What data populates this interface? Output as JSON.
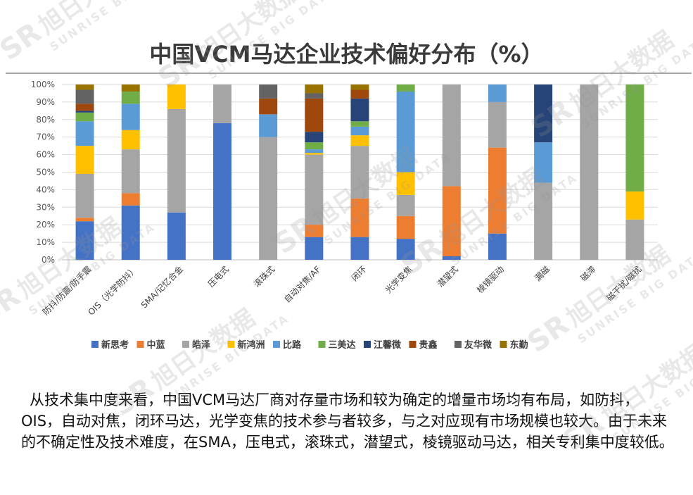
{
  "page": {
    "title": "中国VCM马达企业技术偏好分布（%）",
    "paragraph": "从技术集中度来看，中国VCM马达厂商对存量市场和较为确定的增量市场均有布局，如防抖，OIS，自动对焦，闭环马达，光学变焦的技术参与者较多，与之对应现有市场规模也较大。由于未来的不确定性及技术难度，在SMA，压电式，滚珠式，潜望式，棱镜驱动马达，相关专利集中度较低。",
    "watermark": {
      "logo": "SR",
      "cn": "旭日大数据",
      "en": "SUNRISE BIG DATA"
    }
  },
  "chart_data": {
    "type": "bar",
    "stacked": true,
    "title": "中国VCM马达企业技术偏好分布（%）",
    "xlabel": "",
    "ylabel": "",
    "ylim": [
      0,
      100
    ],
    "yticks": [
      0,
      10,
      20,
      30,
      40,
      50,
      60,
      70,
      80,
      90,
      100
    ],
    "ytick_suffix": "%",
    "grid": true,
    "legend_position": "bottom",
    "categories": [
      "防抖/防震/防手震",
      "OIS（光学防抖）",
      "SMA/记忆合金",
      "压电式",
      "滚珠式",
      "自动对焦/AF",
      "闭环",
      "光学变焦",
      "潜望式",
      "棱镜驱动",
      "漏磁",
      "磁滞",
      "磁干扰/磁扰"
    ],
    "series": [
      {
        "name": "新思考",
        "color": "#4472c4",
        "values": [
          22,
          31,
          27,
          78,
          0,
          13,
          13,
          12,
          2,
          15,
          0,
          0,
          0
        ]
      },
      {
        "name": "中蓝",
        "color": "#ed7d31",
        "values": [
          2,
          7,
          0,
          0,
          0,
          7,
          22,
          13,
          40,
          49,
          0,
          0,
          0
        ]
      },
      {
        "name": "皓泽",
        "color": "#a5a5a5",
        "values": [
          25,
          25,
          59,
          22,
          70,
          40,
          30,
          12,
          58,
          26,
          44,
          100,
          23
        ]
      },
      {
        "name": "新鸿洲",
        "color": "#ffc000",
        "values": [
          16,
          11,
          14,
          0,
          0,
          1,
          6,
          13,
          0,
          0,
          0,
          0,
          16
        ]
      },
      {
        "name": "比路",
        "color": "#5b9bd5",
        "values": [
          14,
          15,
          0,
          0,
          13,
          2,
          5,
          46,
          0,
          10,
          23,
          0,
          0
        ]
      },
      {
        "name": "三美达",
        "color": "#70ad47",
        "values": [
          5,
          7,
          0,
          0,
          0,
          4,
          3,
          4,
          0,
          0,
          0,
          0,
          61
        ]
      },
      {
        "name": "江馨微",
        "color": "#264478",
        "values": [
          1,
          0,
          0,
          0,
          0,
          6,
          13,
          0,
          0,
          0,
          33,
          0,
          0
        ]
      },
      {
        "name": "贵鑫",
        "color": "#9e480e",
        "values": [
          4,
          0,
          0,
          0,
          9,
          19,
          5,
          0,
          0,
          0,
          0,
          0,
          0
        ]
      },
      {
        "name": "友华微",
        "color": "#636363",
        "values": [
          8,
          0,
          0,
          0,
          8,
          3,
          0,
          0,
          0,
          0,
          0,
          0,
          0
        ]
      },
      {
        "name": "东勤",
        "color": "#997300",
        "values": [
          3,
          4,
          0,
          0,
          0,
          5,
          3,
          0,
          0,
          0,
          0,
          0,
          0
        ]
      }
    ]
  }
}
